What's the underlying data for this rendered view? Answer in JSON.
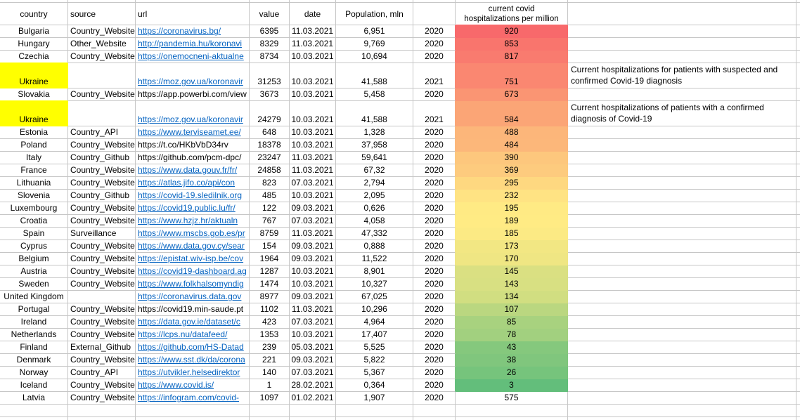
{
  "sheet": {
    "columns": [
      {
        "key": "country",
        "label": "country"
      },
      {
        "key": "source",
        "label": "source"
      },
      {
        "key": "url",
        "label": "url"
      },
      {
        "key": "value",
        "label": "value"
      },
      {
        "key": "date",
        "label": "date"
      },
      {
        "key": "population",
        "label": "Population, mln"
      },
      {
        "key": "year",
        "label": ""
      },
      {
        "key": "hospitalizations",
        "label_line1": "current covid",
        "label_line2": "hospitalizations per million"
      },
      {
        "key": "note",
        "label": ""
      }
    ]
  },
  "colors": {
    "gridline": "#c6c6c6",
    "link_blue": "#0563C1",
    "highlight_yellow": "#FFFF00",
    "scale_min_color": "#63BE7B",
    "scale_mid_color": "#FFEB84",
    "scale_max_color": "#F8696B",
    "text": "#000000"
  },
  "color_scale": {
    "min": 3,
    "mid": 189,
    "max": 920
  },
  "rows": [
    {
      "country": "Bulgaria",
      "highlight": false,
      "tall": false,
      "source": "Country_Website",
      "url": "https://coronavirus.bg/",
      "link": true,
      "value": "6395",
      "date": "11.03.2021",
      "population": "6,951",
      "year": "2020",
      "hosp": 920,
      "hosp_fill": true,
      "note": []
    },
    {
      "country": "Hungary",
      "highlight": false,
      "tall": false,
      "source": "Other_Website",
      "url": "http://pandemia.hu/koronavi",
      "link": true,
      "value": "8329",
      "date": "11.03.2021",
      "population": "9,769",
      "year": "2020",
      "hosp": 853,
      "hosp_fill": true,
      "note": []
    },
    {
      "country": "Czechia",
      "highlight": false,
      "tall": false,
      "source": "Country_Website",
      "url": "https://onemocneni-aktualne",
      "link": true,
      "value": "8734",
      "date": "10.03.2021",
      "population": "10,694",
      "year": "2020",
      "hosp": 817,
      "hosp_fill": true,
      "note": []
    },
    {
      "country": "Ukraine",
      "highlight": true,
      "tall": true,
      "source": "",
      "url": "https://moz.gov.ua/koronavir",
      "link": true,
      "value": "31253",
      "date": "10.03.2021",
      "population": "41,588",
      "year": "2021",
      "hosp": 751,
      "hosp_fill": true,
      "note": [
        "Current hospitalizations for patients with suspected and",
        "confirmed Covid-19 diagnosis"
      ]
    },
    {
      "country": "Slovakia",
      "highlight": false,
      "tall": false,
      "source": "Country_Website",
      "url": "https://app.powerbi.com/view",
      "link": false,
      "value": "3673",
      "date": "10.03.2021",
      "population": "5,458",
      "year": "2020",
      "hosp": 673,
      "hosp_fill": true,
      "note": []
    },
    {
      "country": "Ukraine",
      "highlight": true,
      "tall": true,
      "source": "",
      "url": "https://moz.gov.ua/koronavir",
      "link": true,
      "value": "24279",
      "date": "10.03.2021",
      "population": "41,588",
      "year": "2021",
      "hosp": 584,
      "hosp_fill": true,
      "note": [
        "Current hospitalizations of patients with a confirmed",
        "diagnosis of Covid-19"
      ]
    },
    {
      "country": "Estonia",
      "highlight": false,
      "tall": false,
      "source": "Country_API",
      "url": "https://www.terviseamet.ee/",
      "link": true,
      "value": "648",
      "date": "10.03.2021",
      "population": "1,328",
      "year": "2020",
      "hosp": 488,
      "hosp_fill": true,
      "note": []
    },
    {
      "country": "Poland",
      "highlight": false,
      "tall": false,
      "source": "Country_Website",
      "url": "https://t.co/HKbVbD34rv",
      "link": false,
      "value": "18378",
      "date": "10.03.2021",
      "population": "37,958",
      "year": "2020",
      "hosp": 484,
      "hosp_fill": true,
      "note": []
    },
    {
      "country": "Italy",
      "highlight": false,
      "tall": false,
      "source": "Country_Github",
      "url": "https://github.com/pcm-dpc/",
      "link": false,
      "value": "23247",
      "date": "11.03.2021",
      "population": "59,641",
      "year": "2020",
      "hosp": 390,
      "hosp_fill": true,
      "note": []
    },
    {
      "country": "France",
      "highlight": false,
      "tall": false,
      "source": "Country_Website",
      "url": "https://www.data.gouv.fr/fr/",
      "link": true,
      "value": "24858",
      "date": "11.03.2021",
      "population": "67,32",
      "year": "2020",
      "hosp": 369,
      "hosp_fill": true,
      "note": []
    },
    {
      "country": "Lithuania",
      "highlight": false,
      "tall": false,
      "source": "Country_Website",
      "url": "https://atlas.jifo.co/api/con",
      "link": true,
      "value": "823",
      "date": "07.03.2021",
      "population": "2,794",
      "year": "2020",
      "hosp": 295,
      "hosp_fill": true,
      "note": []
    },
    {
      "country": "Slovenia",
      "highlight": false,
      "tall": false,
      "source": "Country_Github",
      "url": "https://covid-19.sledilnik.org",
      "link": true,
      "value": "485",
      "date": "10.03.2021",
      "population": "2,095",
      "year": "2020",
      "hosp": 232,
      "hosp_fill": true,
      "note": []
    },
    {
      "country": "Luxembourg",
      "highlight": false,
      "tall": false,
      "source": "Country_Website",
      "url": "https://covid19.public.lu/fr/",
      "link": true,
      "value": "122",
      "date": "09.03.2021",
      "population": "0,626",
      "year": "2020",
      "hosp": 195,
      "hosp_fill": true,
      "note": []
    },
    {
      "country": "Croatia",
      "highlight": false,
      "tall": false,
      "source": "Country_Website",
      "url": "https://www.hzjz.hr/aktualn",
      "link": true,
      "value": "767",
      "date": "07.03.2021",
      "population": "4,058",
      "year": "2020",
      "hosp": 189,
      "hosp_fill": true,
      "note": []
    },
    {
      "country": "Spain",
      "highlight": false,
      "tall": false,
      "source": "Surveillance",
      "url": "https://www.mscbs.gob.es/pr",
      "link": true,
      "value": "8759",
      "date": "11.03.2021",
      "population": "47,332",
      "year": "2020",
      "hosp": 185,
      "hosp_fill": true,
      "note": []
    },
    {
      "country": "Cyprus",
      "highlight": false,
      "tall": false,
      "source": "Country_Website",
      "url": "https://www.data.gov.cy/sear",
      "link": true,
      "value": "154",
      "date": "09.03.2021",
      "population": "0,888",
      "year": "2020",
      "hosp": 173,
      "hosp_fill": true,
      "note": []
    },
    {
      "country": "Belgium",
      "highlight": false,
      "tall": false,
      "source": "Country_Website",
      "url": "https://epistat.wiv-isp.be/cov",
      "link": true,
      "value": "1964",
      "date": "09.03.2021",
      "population": "11,522",
      "year": "2020",
      "hosp": 170,
      "hosp_fill": true,
      "note": []
    },
    {
      "country": "Austria",
      "highlight": false,
      "tall": false,
      "source": "Country_Website",
      "url": "https://covid19-dashboard.ag",
      "link": true,
      "value": "1287",
      "date": "10.03.2021",
      "population": "8,901",
      "year": "2020",
      "hosp": 145,
      "hosp_fill": true,
      "note": []
    },
    {
      "country": "Sweden",
      "highlight": false,
      "tall": false,
      "source": "Country_Website",
      "url": "https://www.folkhalsomyndig",
      "link": true,
      "value": "1474",
      "date": "10.03.2021",
      "population": "10,327",
      "year": "2020",
      "hosp": 143,
      "hosp_fill": true,
      "note": []
    },
    {
      "country": "United Kingdom",
      "highlight": false,
      "tall": false,
      "source": "",
      "url": "https://coronavirus.data.gov",
      "link": true,
      "value": "8977",
      "date": "09.03.2021",
      "population": "67,025",
      "year": "2020",
      "hosp": 134,
      "hosp_fill": true,
      "note": []
    },
    {
      "country": "Portugal",
      "highlight": false,
      "tall": false,
      "source": "Country_Website",
      "url": "https://covid19.min-saude.pt",
      "link": false,
      "value": "1102",
      "date": "11.03.2021",
      "population": "10,296",
      "year": "2020",
      "hosp": 107,
      "hosp_fill": true,
      "note": []
    },
    {
      "country": "Ireland",
      "highlight": false,
      "tall": false,
      "source": "Country_Website",
      "url": "https://data.gov.ie/dataset/c",
      "link": true,
      "value": "423",
      "date": "07.03.2021",
      "population": "4,964",
      "year": "2020",
      "hosp": 85,
      "hosp_fill": true,
      "note": []
    },
    {
      "country": "Netherlands",
      "highlight": false,
      "tall": false,
      "source": "Country_Website",
      "url": "https://lcps.nu/datafeed/",
      "link": true,
      "value": "1353",
      "date": "10.03.2021",
      "population": "17,407",
      "year": "2020",
      "hosp": 78,
      "hosp_fill": true,
      "note": []
    },
    {
      "country": "Finland",
      "highlight": false,
      "tall": false,
      "source": "External_Github",
      "url": "https://github.com/HS-Datad",
      "link": true,
      "value": "239",
      "date": "05.03.2021",
      "population": "5,525",
      "year": "2020",
      "hosp": 43,
      "hosp_fill": true,
      "note": []
    },
    {
      "country": "Denmark",
      "highlight": false,
      "tall": false,
      "source": "Country_Website",
      "url": "https://www.sst.dk/da/corona",
      "link": true,
      "value": "221",
      "date": "09.03.2021",
      "population": "5,822",
      "year": "2020",
      "hosp": 38,
      "hosp_fill": true,
      "note": []
    },
    {
      "country": "Norway",
      "highlight": false,
      "tall": false,
      "source": "Country_API",
      "url": "https://utvikler.helsedirektor",
      "link": true,
      "value": "140",
      "date": "07.03.2021",
      "population": "5,367",
      "year": "2020",
      "hosp": 26,
      "hosp_fill": true,
      "note": []
    },
    {
      "country": "Iceland",
      "highlight": false,
      "tall": false,
      "source": "Country_Website",
      "url": "https://www.covid.is/",
      "link": true,
      "value": "1",
      "date": "28.02.2021",
      "population": "0,364",
      "year": "2020",
      "hosp": 3,
      "hosp_fill": true,
      "note": []
    },
    {
      "country": "Latvia",
      "highlight": false,
      "tall": false,
      "source": "Country_Website",
      "url": "https://infogram.com/covid-",
      "link": true,
      "value": "1097",
      "date": "01.02.2021",
      "population": "1,907",
      "year": "2020",
      "hosp": 575,
      "hosp_fill": false,
      "note": []
    }
  ]
}
